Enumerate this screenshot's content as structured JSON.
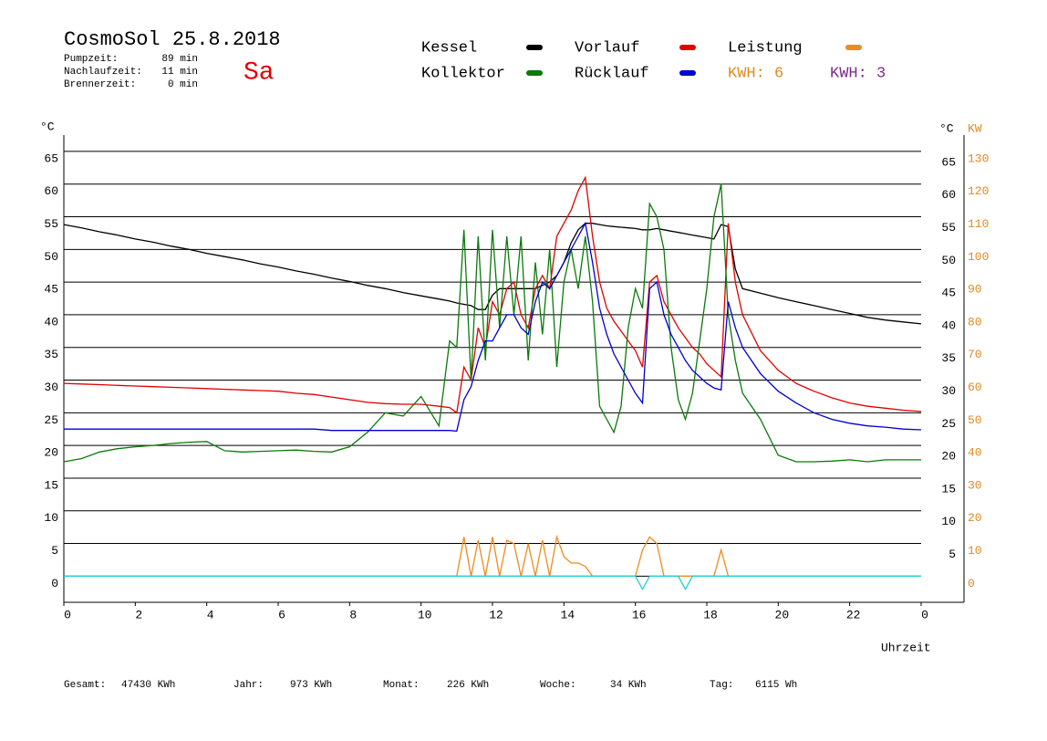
{
  "chart_data": {
    "type": "line",
    "title": "CosmoSol 25.8.2018",
    "day": "Sa",
    "info": [
      {
        "label": "Pumpzeit:",
        "value": "89 min"
      },
      {
        "label": "Nachlaufzeit:",
        "value": "11 min"
      },
      {
        "label": "Brennerzeit:",
        "value": "0 min"
      }
    ],
    "kwh_labels": [
      {
        "label": "KWH: 6",
        "color": "#e08a1e"
      },
      {
        "label": "KWH: 3",
        "color": "#7a2a8a"
      }
    ],
    "y_label": "°C",
    "y_right_label": "°C",
    "y2_label": "KW",
    "x_label": "Uhrzeit",
    "footer": [
      {
        "label": "Gesamt:",
        "value": "47430 KWh"
      },
      {
        "label": "Jahr:",
        "value": "973 KWh"
      },
      {
        "label": "Monat:",
        "value": "226 KWh"
      },
      {
        "label": "Woche:",
        "value": "34 KWh"
      },
      {
        "label": "Tag:",
        "value": "6115 Wh"
      }
    ],
    "xlim": [
      0,
      24
    ],
    "xticks": [
      0,
      2,
      4,
      6,
      8,
      10,
      12,
      14,
      16,
      18,
      20,
      22,
      {
        "value": 24,
        "label": "0"
      }
    ],
    "ylim": [
      -4,
      67.5
    ],
    "yticks": [
      0,
      5,
      10,
      15,
      20,
      25,
      30,
      35,
      40,
      45,
      50,
      55,
      60,
      65
    ],
    "y_right_ticks": [
      5,
      10,
      15,
      20,
      25,
      30,
      35,
      40,
      45,
      50,
      55,
      60,
      65
    ],
    "y2lim": [
      -8,
      135
    ],
    "y2ticks": [
      0,
      10,
      20,
      30,
      40,
      50,
      60,
      70,
      80,
      90,
      100,
      110,
      120,
      130
    ],
    "grid": true,
    "x": [
      0,
      0.5,
      1,
      1.5,
      2,
      2.5,
      3,
      3.5,
      4,
      4.5,
      5,
      5.5,
      6,
      6.5,
      7,
      7.5,
      8,
      8.5,
      9,
      9.5,
      10,
      10.5,
      10.8,
      11,
      11.2,
      11.4,
      11.6,
      11.8,
      12,
      12.2,
      12.4,
      12.6,
      12.8,
      13,
      13.2,
      13.4,
      13.6,
      13.8,
      14,
      14.2,
      14.4,
      14.6,
      14.8,
      15,
      15.2,
      15.4,
      15.6,
      15.8,
      16,
      16.2,
      16.4,
      16.6,
      16.8,
      17,
      17.2,
      17.4,
      17.6,
      17.8,
      18,
      18.2,
      18.4,
      18.6,
      18.8,
      19,
      19.5,
      20,
      20.5,
      21,
      21.5,
      22,
      22.5,
      23,
      23.5,
      24
    ],
    "series": [
      {
        "name": "Kessel",
        "color": "#000000",
        "values": [
          53.8,
          53.3,
          52.7,
          52.2,
          51.6,
          51.1,
          50.5,
          50,
          49.4,
          48.9,
          48.4,
          47.8,
          47.3,
          46.7,
          46.2,
          45.6,
          45.1,
          44.5,
          44,
          43.4,
          42.9,
          42.4,
          42.1,
          41.8,
          41.6,
          41.4,
          40.8,
          40.8,
          43,
          44,
          44,
          44,
          44,
          44,
          44,
          44.5,
          45,
          46,
          48,
          51,
          53,
          54,
          54,
          53.8,
          53.6,
          53.5,
          53.4,
          53.3,
          53.2,
          53,
          53,
          53.2,
          53,
          52.8,
          52.6,
          52.4,
          52.2,
          52,
          51.8,
          51.6,
          53.8,
          53.5,
          47,
          44,
          43.3,
          42.6,
          42,
          41.4,
          40.8,
          40.2,
          39.6,
          39.2,
          38.9,
          38.6
        ]
      },
      {
        "name": "Vorlauf",
        "color": "#e00000",
        "values": [
          29.5,
          29.4,
          29.3,
          29.2,
          29.1,
          29,
          28.9,
          28.8,
          28.7,
          28.6,
          28.5,
          28.4,
          28.3,
          28,
          27.8,
          27.4,
          27,
          26.6,
          26.4,
          26.3,
          26.3,
          26,
          25.8,
          25,
          32,
          30,
          38,
          35,
          42,
          40,
          44,
          45,
          40,
          38,
          44,
          46,
          44,
          52,
          54,
          56,
          59,
          61,
          52,
          45,
          41,
          39,
          37.5,
          36,
          34.5,
          32,
          45,
          46,
          42,
          40,
          38,
          36.5,
          35,
          34,
          32.5,
          31.5,
          30.5,
          54,
          45,
          40,
          34.5,
          31.5,
          29.5,
          28.3,
          27.3,
          26.5,
          26,
          25.7,
          25.4,
          25.2
        ]
      },
      {
        "name": "Leistung",
        "color": "#f08a1e",
        "axis": "y2",
        "values": [
          0,
          0,
          0,
          0,
          0,
          0,
          0,
          0,
          0,
          0,
          0,
          0,
          0,
          0,
          0,
          0,
          0,
          0,
          0,
          0,
          0,
          0,
          0,
          0,
          12,
          0,
          11,
          0,
          12,
          0,
          11,
          10,
          0,
          10,
          0,
          11,
          0,
          12,
          6,
          4,
          4,
          3,
          0,
          0,
          0,
          0,
          0,
          0,
          0,
          8,
          12,
          10,
          0,
          0,
          0,
          0,
          0,
          0,
          0,
          0,
          8,
          0,
          0,
          0,
          0,
          0,
          0,
          0,
          0,
          0,
          0,
          0,
          0,
          0
        ]
      },
      {
        "name": "Kollektor",
        "color": "#0a7a0a",
        "values": [
          17.5,
          18,
          19,
          19.5,
          19.8,
          20,
          20.3,
          20.5,
          20.6,
          19.2,
          19,
          19.1,
          19.2,
          19.3,
          19.1,
          19,
          19.8,
          22,
          25,
          24.5,
          27.5,
          23,
          36,
          35,
          53,
          30,
          52,
          33,
          53,
          38,
          52,
          40,
          52,
          33,
          48,
          37,
          50,
          32,
          45,
          50,
          44,
          52,
          42,
          26,
          24,
          22,
          26,
          38,
          44,
          41,
          57,
          55,
          50,
          35,
          27,
          24,
          28,
          36,
          44,
          55,
          60,
          40,
          33,
          28,
          24,
          18.5,
          17.5,
          17.5,
          17.6,
          17.8,
          17.5,
          17.8,
          17.8,
          17.8
        ]
      },
      {
        "name": "Rücklauf",
        "color": "#0000d0",
        "values": [
          22.5,
          22.5,
          22.5,
          22.5,
          22.5,
          22.5,
          22.5,
          22.5,
          22.5,
          22.5,
          22.5,
          22.5,
          22.5,
          22.5,
          22.5,
          22.3,
          22.3,
          22.3,
          22.3,
          22.3,
          22.3,
          22.3,
          22.3,
          22.2,
          27,
          29,
          33,
          36,
          36,
          38,
          40,
          40,
          38,
          37,
          42,
          45,
          44,
          46,
          48,
          50,
          52,
          54,
          48,
          41,
          37,
          34,
          32,
          30,
          28,
          26.5,
          44,
          45,
          40,
          37,
          35,
          33,
          31.5,
          30.5,
          29.5,
          28.8,
          28.5,
          42,
          38,
          35,
          31,
          28.3,
          26.5,
          25,
          24,
          23.4,
          23,
          22.8,
          22.5,
          22.4
        ]
      },
      {
        "color": "#20d0d0",
        "values": [
          0,
          0,
          0,
          0,
          0,
          0,
          0,
          0,
          0,
          0,
          0,
          0,
          0,
          0,
          0,
          0,
          0,
          0,
          0,
          0,
          0,
          0,
          0,
          0,
          0,
          0,
          0,
          0,
          0,
          0,
          0,
          0,
          0,
          0,
          0,
          0,
          0,
          0,
          0,
          0,
          0,
          0,
          0,
          0,
          0,
          0,
          0,
          0,
          0,
          -2,
          0,
          0,
          0,
          0,
          0,
          -2,
          0,
          0,
          0,
          0,
          0,
          0,
          0,
          0,
          0,
          0,
          0,
          0,
          0,
          0,
          0,
          0,
          0,
          0
        ]
      }
    ]
  }
}
